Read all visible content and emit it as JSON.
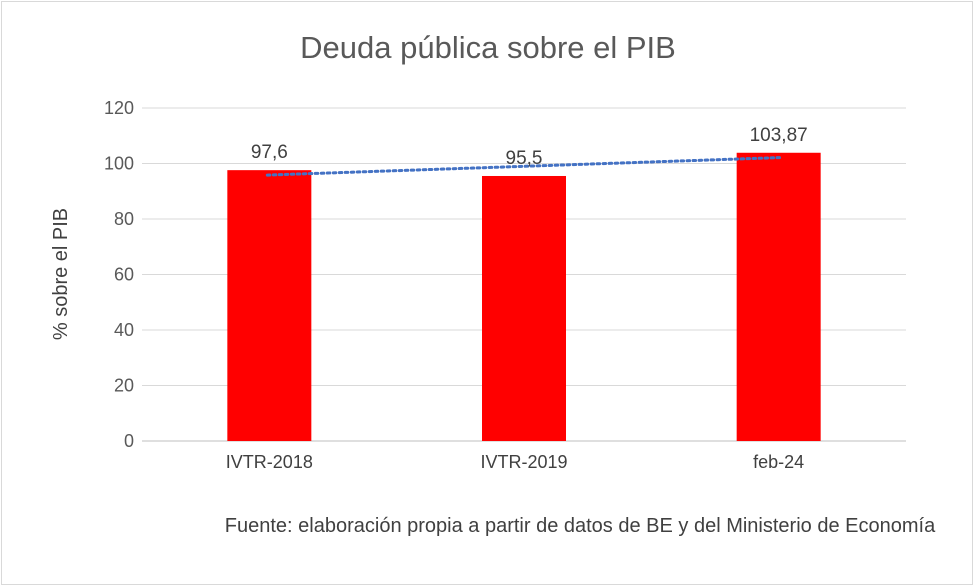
{
  "chart_data": {
    "type": "bar",
    "title": "Deuda pública sobre el PIB",
    "xlabel": "",
    "ylabel": "% sobre el PIB",
    "categories": [
      "IVTR-2018",
      "IVTR-2019",
      "feb-24"
    ],
    "values": [
      97.6,
      95.5,
      103.87
    ],
    "data_labels": [
      "97,6",
      "95,5",
      "103,87"
    ],
    "ylim": [
      0,
      120
    ],
    "yticks": [
      0,
      20,
      40,
      60,
      80,
      100,
      120
    ],
    "grid": true,
    "bar_color": "#ff0000",
    "trendline": {
      "type": "linear",
      "color": "#4472c4",
      "style": "dotted"
    },
    "source": "Fuente: elaboración propia a partir de datos de BE y del Ministerio de Economía"
  }
}
